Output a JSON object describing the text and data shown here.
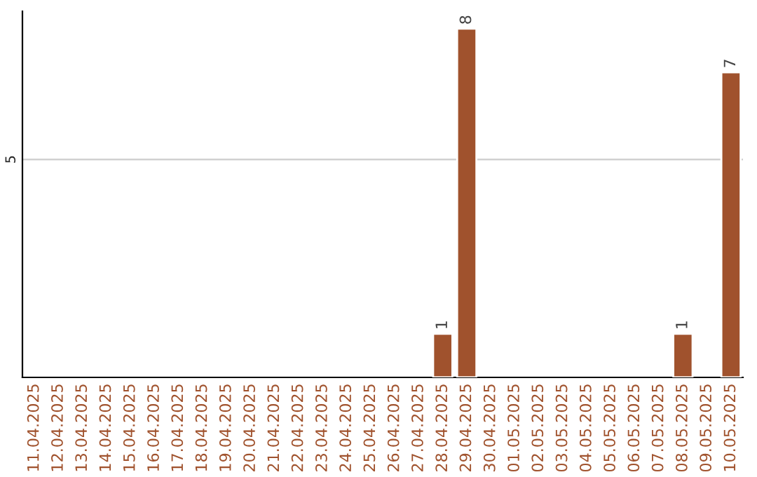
{
  "chart_data": {
    "type": "bar",
    "categories": [
      "11.04.2025",
      "12.04.2025",
      "13.04.2025",
      "14.04.2025",
      "15.04.2025",
      "16.04.2025",
      "17.04.2025",
      "18.04.2025",
      "19.04.2025",
      "20.04.2025",
      "21.04.2025",
      "22.04.2025",
      "23.04.2025",
      "24.04.2025",
      "25.04.2025",
      "26.04.2025",
      "27.04.2025",
      "28.04.2025",
      "29.04.2025",
      "30.04.2025",
      "01.05.2025",
      "02.05.2025",
      "03.05.2025",
      "04.05.2025",
      "05.05.2025",
      "06.05.2025",
      "07.05.2025",
      "08.05.2025",
      "09.05.2025",
      "10.05.2025"
    ],
    "values": [
      null,
      null,
      null,
      null,
      null,
      null,
      null,
      null,
      null,
      null,
      null,
      null,
      null,
      null,
      null,
      null,
      null,
      1,
      8,
      null,
      null,
      null,
      null,
      null,
      null,
      null,
      null,
      1,
      null,
      7
    ],
    "data_labels": true,
    "color": "#a0522d",
    "ylim": [
      0,
      8.4
    ],
    "ref_lines": [
      {
        "axis": "y",
        "value": 5,
        "label": "5",
        "color": "#cccccc"
      }
    ]
  }
}
